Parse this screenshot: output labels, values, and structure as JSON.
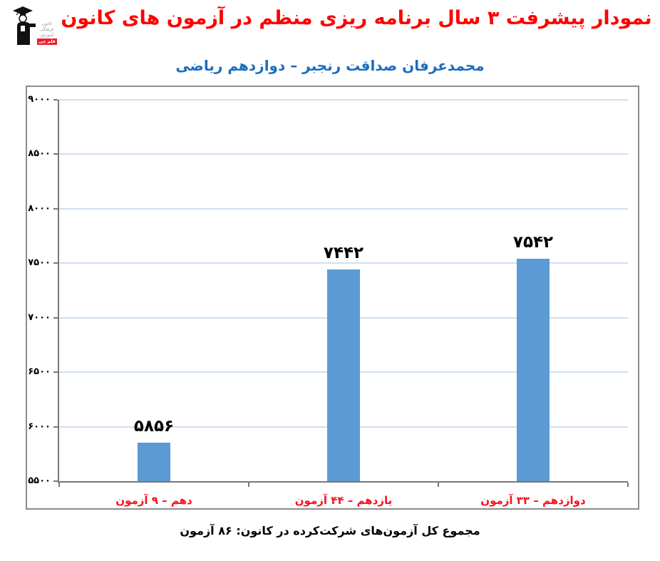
{
  "header": {
    "title_color": "#fe0000",
    "subtitle_color": "#1a6ec0",
    "logo": {
      "org_lines": [
        "کانون",
        "فرهنگی",
        "آموزش"
      ],
      "badge": "قلم چی",
      "badge_color": "#e8212e"
    }
  },
  "chart_data": {
    "type": "bar",
    "title": "نمودار پیشرفت ۳ سال برنامه ریزی منظم در آزمون های کانون",
    "subtitle": "محمدعرفان صداقت رنجبر – دوازدهم ریاضی",
    "categories": [
      "دهم – ۹ آزمون",
      "یازدهم – ۴۴ آزمون",
      "دوازدهم – ۳۳ آزمون"
    ],
    "values": [
      5856,
      7442,
      7542
    ],
    "value_labels": [
      "۵۸۵۶",
      "۷۴۴۲",
      "۷۵۴۲"
    ],
    "xlabel": "",
    "ylabel": "",
    "ylim": [
      5500,
      9000
    ],
    "ytick_values": [
      5500,
      6000,
      6500,
      7000,
      7500,
      8000,
      8500,
      9000
    ],
    "ytick_labels": [
      "۵۵۰۰",
      "۶۰۰۰",
      "۶۵۰۰",
      "۷۰۰۰",
      "۷۵۰۰",
      "۸۰۰۰",
      "۸۵۰۰",
      "۹۰۰۰"
    ],
    "grid": true,
    "legend": false,
    "bar_color": "#5b9ad5",
    "gridline_color": "#d0dff2",
    "axis_color": "#787878",
    "value_label_color": "#000000",
    "category_label_color": "#fb0f1b"
  },
  "footer": {
    "caption": "مجموع کل آزمون‌های شرکت‌کرده در کانون:  ۸۶ آزمون",
    "total_tests": 86
  }
}
